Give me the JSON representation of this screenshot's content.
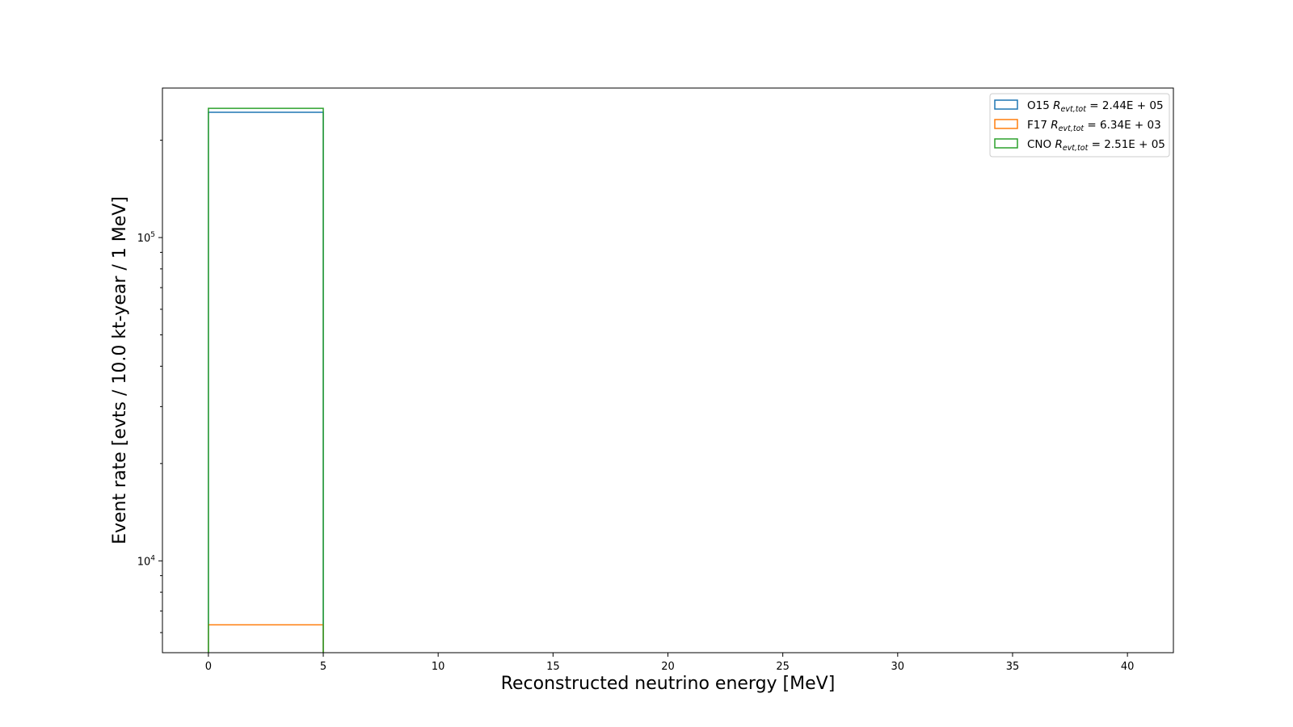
{
  "chart_data": {
    "type": "histogram-step",
    "xlabel": "Reconstructed neutrino energy [MeV]",
    "ylabel": "Event rate [evts / 10.0 kt-year / 1 MeV]",
    "xlim": [
      -2,
      42
    ],
    "ylim": [
      5200,
      290000
    ],
    "yscale": "log",
    "grid": false,
    "legend_position": "top-right",
    "x_ticks": [
      0,
      5,
      10,
      15,
      20,
      25,
      30,
      35,
      40
    ],
    "y_ticks": [
      {
        "value": 10000,
        "base": "10",
        "exp": "4"
      },
      {
        "value": 100000,
        "base": "10",
        "exp": "5"
      }
    ],
    "bin_edges": [
      0,
      5
    ],
    "series": [
      {
        "name": "O15",
        "legend_var": "R",
        "legend_sub": "evt,tot",
        "legend_value": "= 2.44E + 05",
        "color": "#1f77b4",
        "values": [
          244000
        ]
      },
      {
        "name": "F17",
        "legend_var": "R",
        "legend_sub": "evt,tot",
        "legend_value": "= 6.34E + 03",
        "color": "#ff7f0e",
        "values": [
          6340
        ]
      },
      {
        "name": "CNO",
        "legend_var": "R",
        "legend_sub": "evt,tot",
        "legend_value": "= 2.51E + 05",
        "color": "#2ca02c",
        "values": [
          251000
        ]
      }
    ]
  }
}
